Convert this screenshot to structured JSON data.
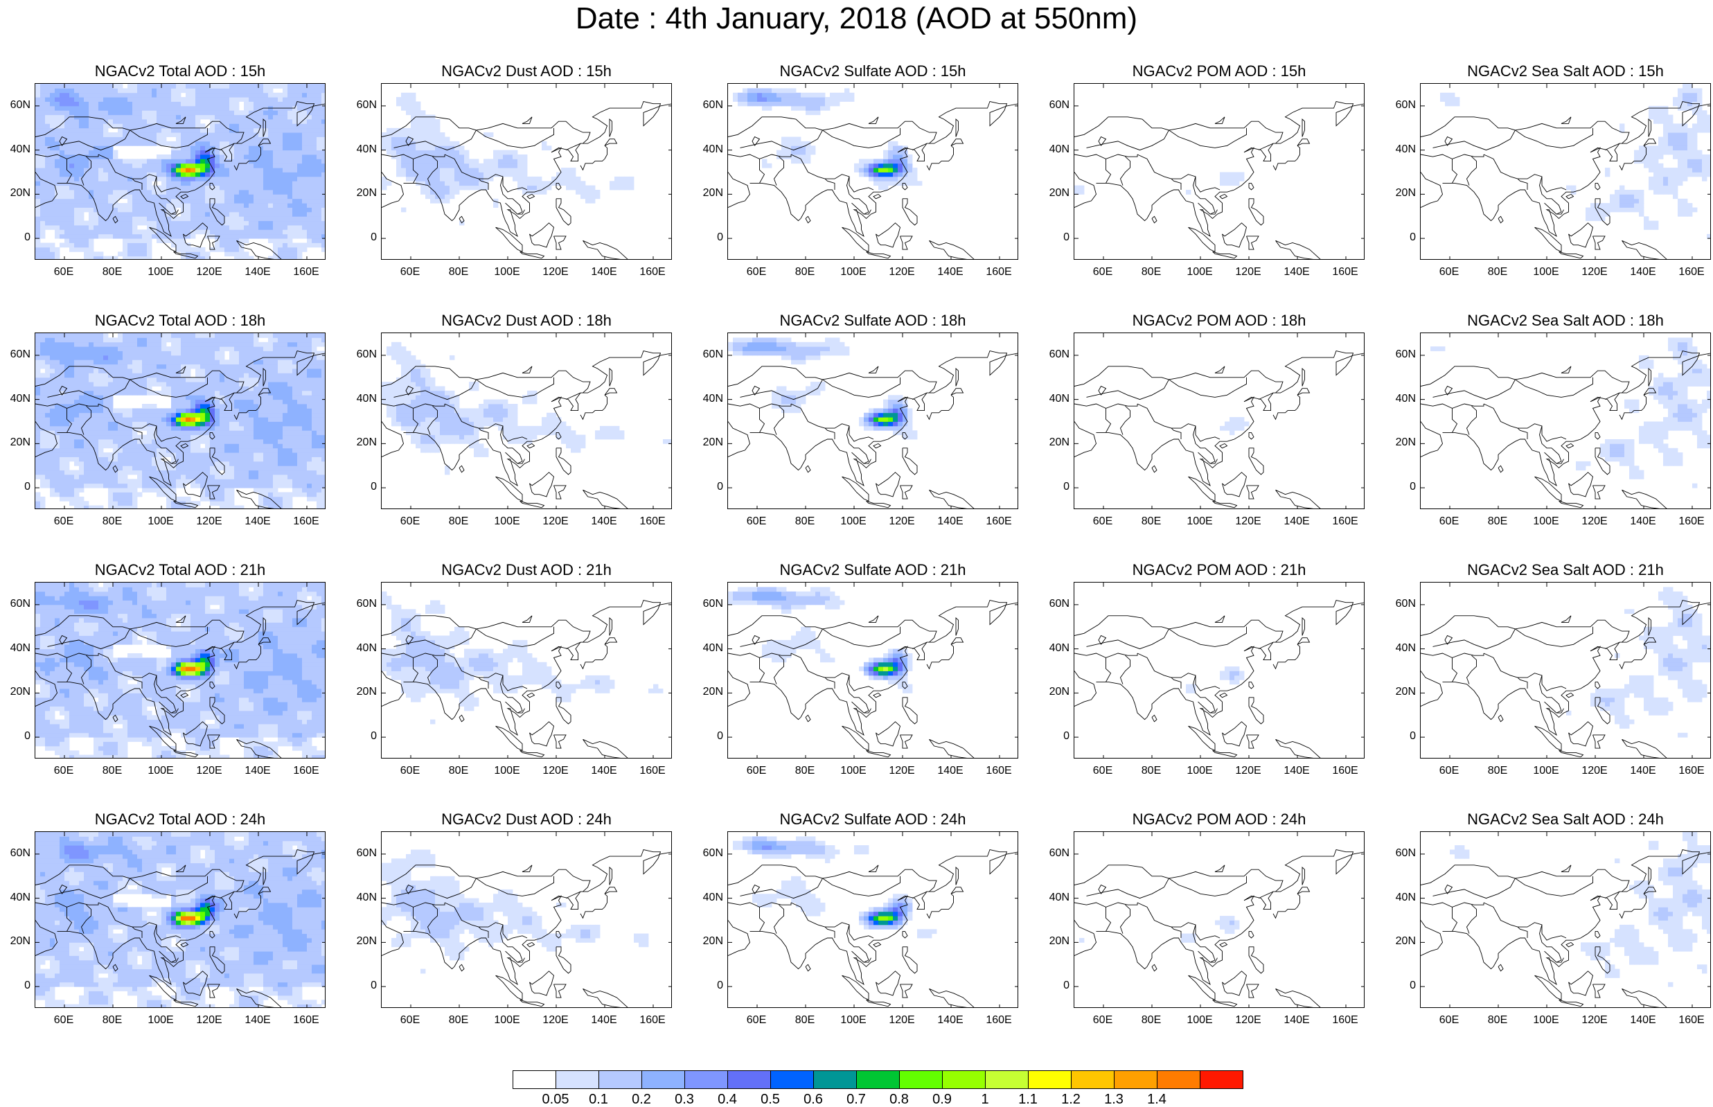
{
  "title": "Date : 4th January, 2018 (AOD at 550nm)",
  "panel_titles": [
    [
      "NGACv2 Total AOD : 15h",
      "NGACv2 Dust AOD : 15h",
      "NGACv2 Sulfate AOD : 15h",
      "NGACv2 POM AOD : 15h",
      "NGACv2 Sea Salt AOD : 15h"
    ],
    [
      "NGACv2 Total AOD : 18h",
      "NGACv2 Dust AOD : 18h",
      "NGACv2 Sulfate AOD : 18h",
      "NGACv2 POM AOD : 18h",
      "NGACv2 Sea Salt AOD : 18h"
    ],
    [
      "NGACv2 Total AOD : 21h",
      "NGACv2 Dust AOD : 21h",
      "NGACv2 Sulfate AOD : 21h",
      "NGACv2 POM AOD : 21h",
      "NGACv2 Sea Salt AOD : 21h"
    ],
    [
      "NGACv2 Total AOD : 24h",
      "NGACv2 Dust AOD : 24h",
      "NGACv2 Sulfate AOD : 24h",
      "NGACv2 POM AOD : 24h",
      "NGACv2 Sea Salt  AOD : 24h"
    ]
  ],
  "lat_labels": [
    "60N",
    "40N",
    "20N",
    "0"
  ],
  "lon_labels": [
    "60E",
    "80E",
    "100E",
    "120E",
    "140E",
    "160E"
  ],
  "colorbar": {
    "colors": [
      "#ffffff",
      "#d6e2ff",
      "#b5c9ff",
      "#8eb2ff",
      "#7f96ff",
      "#6370f8",
      "#0063ff",
      "#009696",
      "#00c633",
      "#63ff00",
      "#96ff00",
      "#c6ff33",
      "#ffff00",
      "#ffc600",
      "#ffa000",
      "#ff7c00",
      "#ff1900"
    ],
    "labels": [
      "0.05",
      "0.1",
      "0.2",
      "0.3",
      "0.4",
      "0.5",
      "0.6",
      "0.7",
      "0.8",
      "0.9",
      "1",
      "1.1",
      "1.2",
      "1.3",
      "1.4"
    ]
  }
}
